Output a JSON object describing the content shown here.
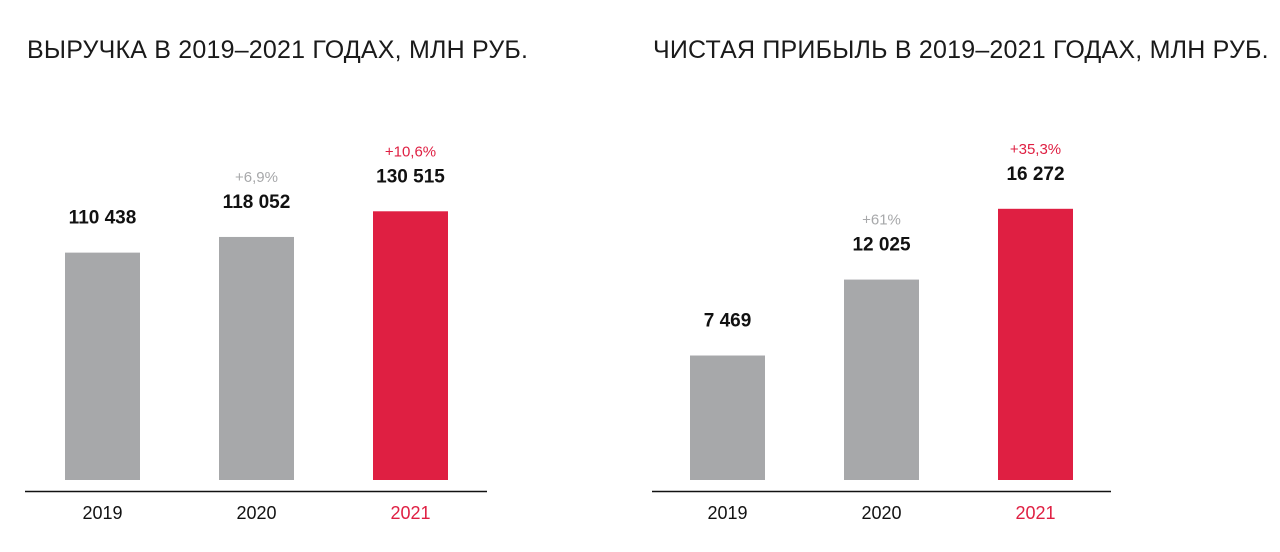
{
  "colors": {
    "bar_default": "#a7a8aa",
    "bar_highlight": "#df1f42",
    "change_default": "#a7a8aa",
    "change_highlight": "#df1f42",
    "axis": "#111111",
    "tick_default": "#111111",
    "tick_highlight": "#df1f42"
  },
  "chart_data": [
    {
      "type": "bar",
      "title": "ВЫРУЧКА В 2019–2021 ГОДАХ, МЛН РУБ.",
      "categories": [
        "2019",
        "2020",
        "2021"
      ],
      "values": [
        110438,
        118052,
        130515
      ],
      "value_labels": [
        "110 438",
        "118 052",
        "130 515"
      ],
      "change_labels": [
        "",
        "+6,9%",
        "+10,6%"
      ],
      "highlight_index": 2,
      "ylim": [
        0,
        170000
      ]
    },
    {
      "type": "bar",
      "title": "ЧИСТАЯ ПРИБЫЛЬ В 2019–2021 ГОДАХ, МЛН РУБ.",
      "categories": [
        "2019",
        "2020",
        "2021"
      ],
      "values": [
        7469,
        12025,
        16272
      ],
      "value_labels": [
        "7 469",
        "12 025",
        "16 272"
      ],
      "change_labels": [
        "",
        "+61%",
        "+35,3%"
      ],
      "highlight_index": 2,
      "ylim": [
        0,
        21000
      ]
    }
  ]
}
